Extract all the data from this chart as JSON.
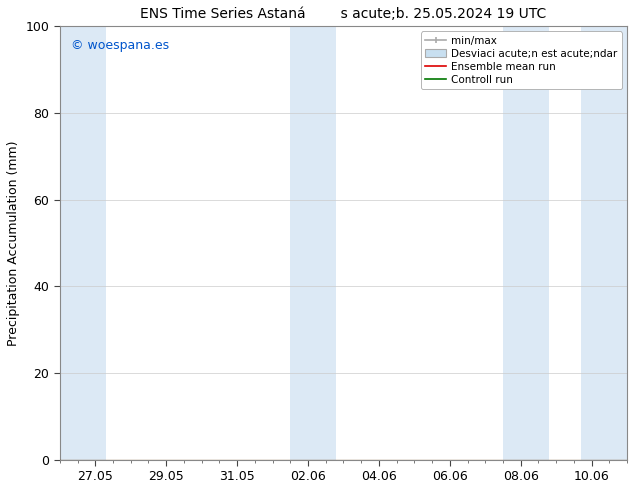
{
  "title_left": "ENS Time Series Astaná",
  "title_right": "s acute;b. 25.05.2024 19 UTC",
  "ylabel": "Precipitation Accumulation (mm)",
  "ylim": [
    0,
    100
  ],
  "yticks": [
    0,
    20,
    40,
    60,
    80,
    100
  ],
  "background_color": "#ffffff",
  "plot_bg_color": "#ffffff",
  "watermark": "© woespana.es",
  "watermark_color": "#0055cc",
  "shaded_color": "#dce9f5",
  "shaded_bands": [
    [
      0.0,
      1.3
    ],
    [
      6.5,
      7.8
    ],
    [
      12.5,
      13.8
    ],
    [
      14.7,
      16.0
    ]
  ],
  "x_tick_labels": [
    "27.05",
    "29.05",
    "31.05",
    "02.06",
    "04.06",
    "06.06",
    "08.06",
    "10.06"
  ],
  "x_tick_positions": [
    1.0,
    3.0,
    5.0,
    7.0,
    9.0,
    11.0,
    13.0,
    15.0
  ],
  "x_min": 0.0,
  "x_max": 16.0,
  "ensemble_color": "#dd0000",
  "control_color": "#007700",
  "minmax_color": "#aaaaaa",
  "std_facecolor": "#c8dff0",
  "std_edgecolor": "#aaaaaa",
  "spine_color": "#888888",
  "tick_color": "#444444",
  "grid_color": "#cccccc",
  "legend_fontsize": 7.5,
  "axis_fontsize": 9,
  "title_fontsize": 10,
  "watermark_fontsize": 9
}
